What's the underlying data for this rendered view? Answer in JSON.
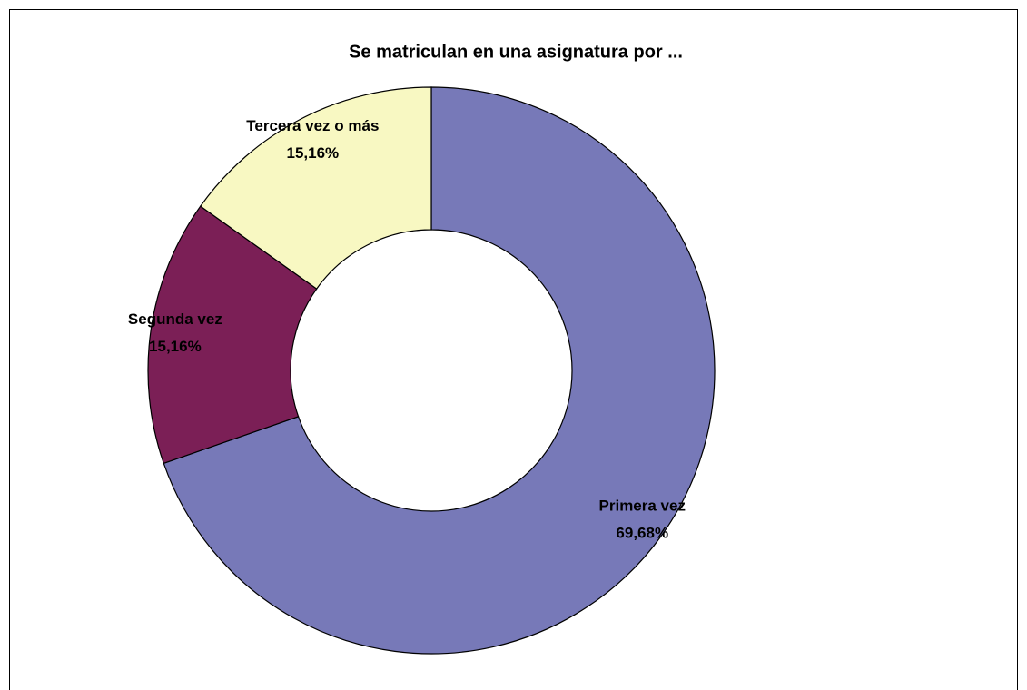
{
  "chart_data": {
    "type": "donut",
    "title": "Se matriculan en una asignatura por ...",
    "categories": [
      "Primera vez",
      "Segunda vez",
      "Tercera vez o más"
    ],
    "values": [
      69.68,
      15.16,
      15.16
    ],
    "value_labels": [
      "69,68%",
      "15,16%",
      "15,16%"
    ],
    "colors": [
      "#7779b8",
      "#7b1f56",
      "#f8f8c2"
    ]
  }
}
